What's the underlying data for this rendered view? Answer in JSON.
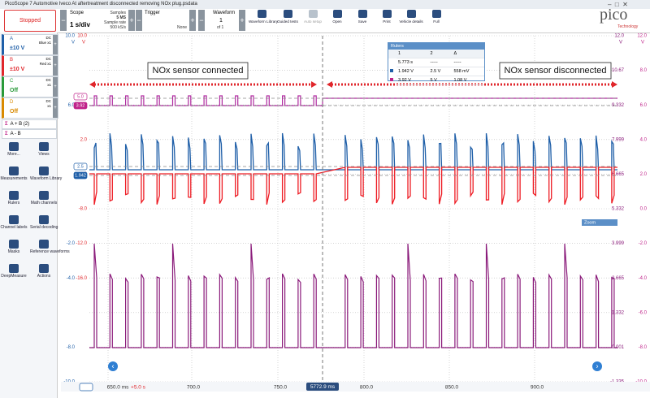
{
  "title_bar": {
    "title": "PicoScope 7 Automotive Iveco At aftertreatment disconnected removing NOx plug.psdata"
  },
  "toolbar": {
    "status": "Stopped",
    "scope": {
      "label": "Scope",
      "timebase": "1 s/div",
      "samples_label": "Samples",
      "samples": "5 MS",
      "rate_label": "Sample rate",
      "rate": "500 kS/s"
    },
    "trigger": {
      "label": "Trigger",
      "mode": "None"
    },
    "waveform": {
      "label": "Waveform",
      "current": "1",
      "total": "of 1"
    },
    "buttons": [
      "Waveform Library",
      "Guided tests",
      "Auto setup",
      "Open",
      "Save",
      "Print",
      "Vehicle details",
      "Full"
    ],
    "logo": {
      "name": "pico",
      "tagline": "Technology"
    }
  },
  "channels": [
    {
      "name": "A",
      "coupling": "DC",
      "probe": "Blue x1",
      "range": "±10 V"
    },
    {
      "name": "B",
      "coupling": "DC",
      "probe": "Red x1",
      "range": "±10 V"
    },
    {
      "name": "C",
      "coupling": "DC",
      "probe": "x1",
      "range": "Off"
    },
    {
      "name": "D",
      "coupling": "DC",
      "probe": "x1",
      "range": "Off"
    }
  ],
  "math_channels": [
    "A + B (2)",
    "A - B"
  ],
  "tools": [
    "More...",
    "Views",
    "Measurements",
    "Waveform Library",
    "Rulers",
    "Math channels",
    "Channel labels",
    "Serial decoding",
    "Masks",
    "Reference waveforms",
    "DeepMeasure",
    "Actions"
  ],
  "plot": {
    "annotations": [
      "NOx sensor connected",
      "NOx sensor disconnected"
    ],
    "left_axis": {
      "units": [
        "V",
        "V"
      ],
      "outer": [
        "10.0",
        null,
        "6.0",
        null,
        null,
        null,
        "-2.0",
        "-4.0",
        null,
        "-8.0",
        "-10.0"
      ],
      "inner": [
        "10.0",
        null,
        null,
        "2.0",
        "-4.0",
        "-8.0",
        "-12.0",
        "-16.0",
        null,
        null,
        null
      ]
    },
    "right_axis": {
      "units": [
        "V",
        "V"
      ],
      "inner": [
        "12.0",
        "10.67",
        "9.332",
        "7.999",
        "6.665",
        "5.332",
        "3.999",
        "2.665",
        "1.332",
        "0.001",
        "-1.335"
      ],
      "outer": [
        "12.0",
        "8.0",
        "6.0",
        "4.0",
        "2.0",
        "0.0",
        "-2.0",
        "-4.0",
        "-6.0",
        "-8.0",
        "-10.0"
      ]
    },
    "x_axis": {
      "labels": [
        "650.0 ms",
        "700.0",
        "750.0",
        "800.0",
        "850.0",
        "900.0"
      ],
      "offset": "+5.0 s",
      "ruler": "5772.9 ms"
    },
    "ruler_tags": [
      "5.0",
      "3.92",
      "2.5",
      "1.942"
    ],
    "rulers": {
      "title": "Rulers",
      "header": [
        "1",
        "2",
        "Δ"
      ],
      "rows": [
        [
          "5.773 s",
          "-----",
          "-----"
        ],
        [
          "1.942 V",
          "2.5 V",
          "558 mV"
        ],
        [
          "3.92 V",
          "5 V",
          "1.08 V"
        ]
      ]
    },
    "zoom": "Zoom"
  }
}
